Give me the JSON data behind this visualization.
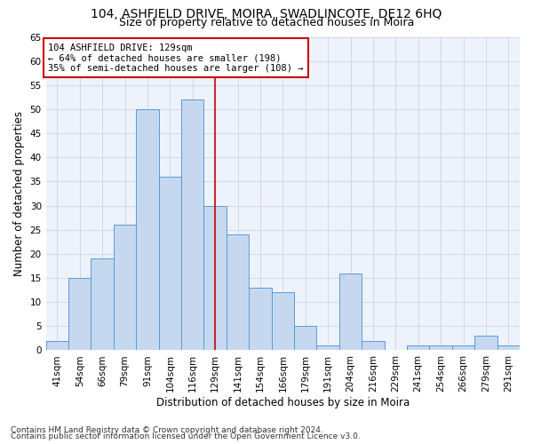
{
  "title1": "104, ASHFIELD DRIVE, MOIRA, SWADLINCOTE, DE12 6HQ",
  "title2": "Size of property relative to detached houses in Moira",
  "xlabel": "Distribution of detached houses by size in Moira",
  "ylabel": "Number of detached properties",
  "categories": [
    "41sqm",
    "54sqm",
    "66sqm",
    "79sqm",
    "91sqm",
    "104sqm",
    "116sqm",
    "129sqm",
    "141sqm",
    "154sqm",
    "166sqm",
    "179sqm",
    "191sqm",
    "204sqm",
    "216sqm",
    "229sqm",
    "241sqm",
    "254sqm",
    "266sqm",
    "279sqm",
    "291sqm"
  ],
  "values": [
    2,
    15,
    19,
    26,
    50,
    36,
    52,
    30,
    24,
    13,
    12,
    5,
    1,
    16,
    2,
    0,
    1,
    1,
    1,
    3,
    1
  ],
  "bar_color": "#c5d8f0",
  "bar_edge_color": "#5b9bd5",
  "highlight_index": 7,
  "ylim": [
    0,
    65
  ],
  "yticks": [
    0,
    5,
    10,
    15,
    20,
    25,
    30,
    35,
    40,
    45,
    50,
    55,
    60,
    65
  ],
  "grid_color": "#c8d4e8",
  "background_color": "#eef2fb",
  "annotation_line1": "104 ASHFIELD DRIVE: 129sqm",
  "annotation_line2": "← 64% of detached houses are smaller (198)",
  "annotation_line3": "35% of semi-detached houses are larger (108) →",
  "annotation_box_color": "#ffffff",
  "annotation_box_edge": "#cc0000",
  "footer1": "Contains HM Land Registry data © Crown copyright and database right 2024.",
  "footer2": "Contains public sector information licensed under the Open Government Licence v3.0.",
  "title1_fontsize": 10,
  "title2_fontsize": 9,
  "xlabel_fontsize": 8.5,
  "ylabel_fontsize": 8.5,
  "tick_fontsize": 7.5,
  "annotation_fontsize": 7.5,
  "footer_fontsize": 6.5
}
